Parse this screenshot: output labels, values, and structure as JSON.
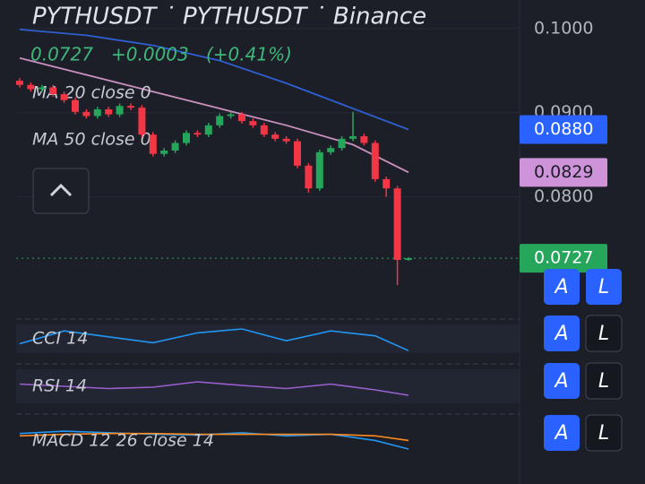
{
  "header": {
    "title": "PYTHUSDT ˙ PYTHUSDT ˙ Binance",
    "price": 0.0727,
    "change": "+0.0003",
    "change_pct": "(+0.41%)"
  },
  "chart_data": {
    "type": "candlestick",
    "open": [
      0.0938,
      0.0933,
      0.0928,
      0.093,
      0.0922,
      0.0915,
      0.0901,
      0.0896,
      0.0904,
      0.0898,
      0.0908,
      0.0906,
      0.0874,
      0.0851,
      0.0855,
      0.0864,
      0.0876,
      0.0874,
      0.0885,
      0.0896,
      0.0898,
      0.089,
      0.0885,
      0.0874,
      0.0869,
      0.0866,
      0.0837,
      0.081,
      0.0853,
      0.0858,
      0.0869,
      0.0872,
      0.0864,
      0.0821,
      0.081,
      0.0725
    ],
    "high": [
      0.0941,
      0.0936,
      0.0933,
      0.0933,
      0.0925,
      0.0918,
      0.0904,
      0.0907,
      0.0907,
      0.0911,
      0.0911,
      0.0909,
      0.0877,
      0.0858,
      0.0867,
      0.0879,
      0.0879,
      0.0888,
      0.0899,
      0.0901,
      0.0901,
      0.0893,
      0.0888,
      0.0877,
      0.0872,
      0.0869,
      0.084,
      0.0856,
      0.0861,
      0.0872,
      0.0901,
      0.0875,
      0.0867,
      0.0824,
      0.0813,
      0.0728
    ],
    "low": [
      0.093,
      0.0925,
      0.0925,
      0.0919,
      0.0912,
      0.0898,
      0.0893,
      0.0893,
      0.0895,
      0.0895,
      0.0903,
      0.0871,
      0.0848,
      0.0848,
      0.0852,
      0.0861,
      0.0871,
      0.0871,
      0.0882,
      0.0893,
      0.0887,
      0.0882,
      0.0871,
      0.0866,
      0.0863,
      0.0834,
      0.0805,
      0.0807,
      0.085,
      0.0855,
      0.0866,
      0.0861,
      0.0818,
      0.08,
      0.0695,
      0.0724
    ],
    "close": [
      0.0933,
      0.0928,
      0.093,
      0.0922,
      0.0915,
      0.0901,
      0.0896,
      0.0904,
      0.0898,
      0.0908,
      0.0906,
      0.0874,
      0.0851,
      0.0855,
      0.0864,
      0.0876,
      0.0874,
      0.0885,
      0.0896,
      0.0898,
      0.089,
      0.0885,
      0.0874,
      0.0869,
      0.0866,
      0.0837,
      0.081,
      0.0853,
      0.0858,
      0.0869,
      0.0872,
      0.0864,
      0.0821,
      0.081,
      0.0725,
      0.0727
    ],
    "up_color": "#26a65b",
    "down_color": "#f23645",
    "ylim": [
      0.0661,
      0.1034
    ],
    "yticks": [
      {
        "value": 0.1,
        "label": "0.1000"
      },
      {
        "value": 0.09,
        "label": "0.0900"
      },
      {
        "value": 0.08,
        "label": "0.0800"
      }
    ],
    "series": [
      {
        "name": "MA 20 close 0",
        "color": "#c990c0",
        "x": [
          0,
          6,
          12,
          18,
          24,
          30,
          35
        ],
        "values": [
          0.0965,
          0.0945,
          0.0925,
          0.0905,
          0.0885,
          0.0862,
          0.0829
        ]
      },
      {
        "name": "MA 50 close 0",
        "color": "#2f5fd0",
        "x": [
          0,
          6,
          12,
          18,
          24,
          30,
          35
        ],
        "values": [
          0.0999,
          0.0992,
          0.098,
          0.0962,
          0.0935,
          0.0905,
          0.088
        ]
      }
    ],
    "price_tags": [
      {
        "value": 0.088,
        "label": "0.0880",
        "color": "#2962ff"
      },
      {
        "value": 0.0829,
        "label": "0.0829",
        "color": "#ce93d8"
      },
      {
        "value": 0.0727,
        "label": "0.0727",
        "color": "#26a65b"
      }
    ],
    "indicators": [
      {
        "name": "CCI 14",
        "ylim": [
          -200,
          200
        ],
        "x": [
          0,
          4,
          8,
          12,
          16,
          20,
          24,
          28,
          32,
          35
        ],
        "series": [
          {
            "color": "#2196f3",
            "values": [
              -50,
              80,
              20,
              -40,
              60,
              100,
              -20,
              80,
              30,
              -120
            ]
          }
        ]
      },
      {
        "name": "RSI 14",
        "ylim": [
          0,
          100
        ],
        "x": [
          0,
          4,
          8,
          12,
          16,
          20,
          24,
          28,
          32,
          35
        ],
        "series": [
          {
            "color": "#9c5fd0",
            "values": [
              55,
              50,
              45,
              48,
              60,
              52,
              45,
              55,
              42,
              30
            ]
          }
        ]
      },
      {
        "name": "MACD 12 26 close 14",
        "ylim": [
          -0.003,
          0.003
        ],
        "x": [
          0,
          4,
          8,
          12,
          16,
          20,
          24,
          28,
          32,
          35
        ],
        "series": [
          {
            "color": "#2196f3",
            "values": [
              0.0005,
              0.0008,
              0.0006,
              0.0004,
              0.0003,
              0.0006,
              0.0002,
              0.0004,
              -0.0004,
              -0.0015
            ]
          },
          {
            "color": "#ff8a1f",
            "values": [
              0.0002,
              0.0004,
              0.0005,
              0.0005,
              0.0004,
              0.0004,
              0.0004,
              0.0004,
              0.0002,
              -0.0004
            ]
          }
        ]
      }
    ]
  },
  "buttons": [
    [
      "A",
      "L"
    ],
    [
      "A",
      "L"
    ],
    [
      "A",
      "L"
    ],
    [
      "A",
      "L"
    ]
  ]
}
